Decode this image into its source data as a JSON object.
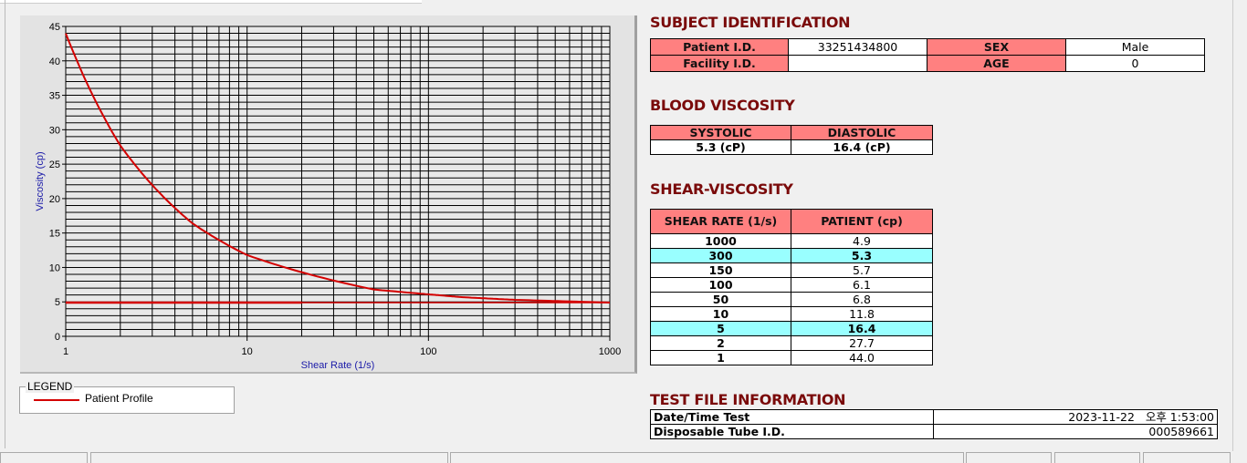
{
  "chart_data": {
    "type": "line",
    "xlabel": "Shear Rate (1/s)",
    "ylabel": "Viscosity (cp)",
    "xscale": "log",
    "xlim": [
      1,
      1000
    ],
    "ylim": [
      0,
      45
    ],
    "xticks": [
      "1",
      "10",
      "100",
      "1000"
    ],
    "yticks": [
      "0",
      "5",
      "10",
      "15",
      "20",
      "25",
      "30",
      "35",
      "40",
      "45"
    ],
    "grid": true,
    "legend_title": "LEGEND",
    "legend_placement": "bottom-left",
    "series": [
      {
        "name": "Patient Profile",
        "color": "#d40000",
        "x": [
          1,
          2,
          5,
          10,
          50,
          100,
          150,
          300,
          1000
        ],
        "y": [
          44.0,
          27.7,
          16.4,
          11.8,
          6.8,
          6.1,
          5.7,
          5.3,
          4.9
        ]
      },
      {
        "color": "#d40000",
        "x": [
          1,
          1000
        ],
        "y": [
          4.9,
          4.9
        ]
      }
    ]
  },
  "subject": {
    "title": "SUBJECT IDENTIFICATION",
    "patient_id_label": "Patient I.D.",
    "patient_id": "33251434800",
    "sex_label": "SEX",
    "sex": "Male",
    "facility_id_label": "Facility I.D.",
    "facility_id": "",
    "age_label": "AGE",
    "age": "0"
  },
  "blood": {
    "title": "BLOOD VISCOSITY",
    "systolic_label": "SYSTOLIC",
    "diastolic_label": "DIASTOLIC",
    "systolic": "5.3 (cP)",
    "diastolic": "16.4 (cP)"
  },
  "shear": {
    "title": "SHEAR-VISCOSITY",
    "col1": "SHEAR RATE (1/s)",
    "col2": "PATIENT (cp)",
    "highlight_color": "#99ffff",
    "rows": [
      {
        "rate": "1000",
        "value": "4.9"
      },
      {
        "rate": "300",
        "value": "5.3",
        "highlight": true
      },
      {
        "rate": "150",
        "value": "5.7"
      },
      {
        "rate": "100",
        "value": "6.1"
      },
      {
        "rate": "50",
        "value": "6.8"
      },
      {
        "rate": "10",
        "value": "11.8"
      },
      {
        "rate": "5",
        "value": "16.4",
        "highlight": true
      },
      {
        "rate": "2",
        "value": "27.7"
      },
      {
        "rate": "1",
        "value": "44.0"
      }
    ]
  },
  "testfile": {
    "title": "TEST FILE INFORMATION",
    "datetime_label": "Date/Time Test",
    "datetime": "2023-11-22   오후 1:53:00",
    "tube_label": "Disposable Tube I.D.",
    "tube": "000589661"
  },
  "colors": {
    "header": "#ff8080",
    "title": "#7a0a0a",
    "curve": "#d40000"
  }
}
